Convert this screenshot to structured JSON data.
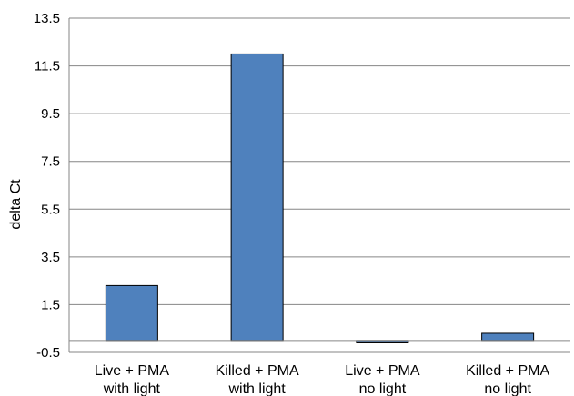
{
  "chart_data": {
    "type": "bar",
    "title": "",
    "xlabel": "",
    "ylabel": "delta Ct",
    "categories": [
      [
        "Live + PMA",
        "with light"
      ],
      [
        "Killed + PMA",
        "with light"
      ],
      [
        "Live + PMA",
        "no light"
      ],
      [
        "Killed + PMA",
        "no light"
      ]
    ],
    "values": [
      2.3,
      12.0,
      -0.1,
      0.3
    ],
    "ylim": [
      -0.5,
      13.5
    ],
    "yticks": [
      "-0.5",
      "1.5",
      "3.5",
      "5.5",
      "7.5",
      "9.5",
      "11.5",
      "13.5"
    ],
    "grid": true,
    "legend": "none",
    "colors": {
      "bar_fill": "#4f81bd",
      "bar_stroke": "#000000",
      "grid": "#868686",
      "axis": "#868686"
    }
  }
}
